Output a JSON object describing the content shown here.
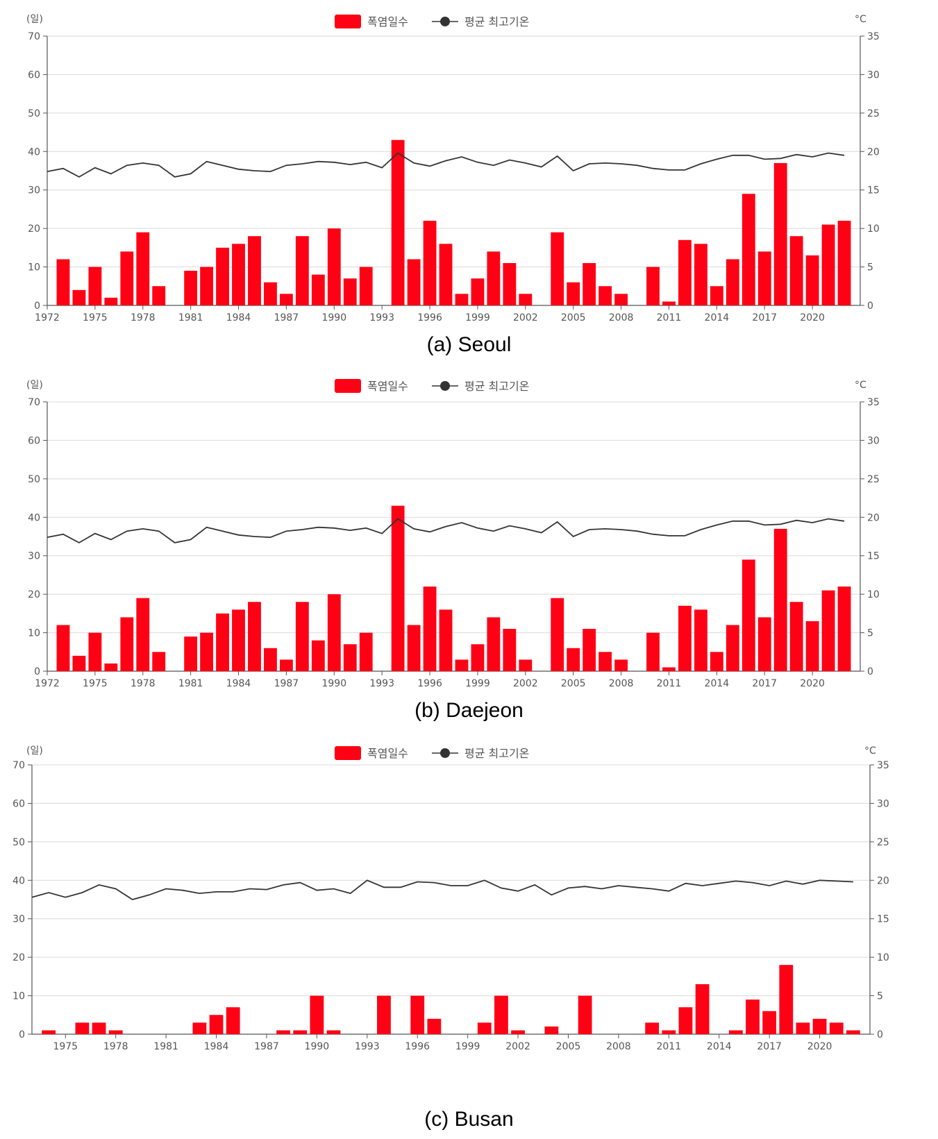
{
  "legend": {
    "bar_label": "폭염일수",
    "line_label": "평균 최고기온",
    "bar_color": "#ff0015",
    "line_color": "#333333"
  },
  "units": {
    "left": "(일)",
    "right": "°C"
  },
  "chart_data": [
    {
      "type": "bar",
      "caption": "(a) Seoul",
      "x_ticks": [
        "1972",
        "1975",
        "1978",
        "1981",
        "1984",
        "1987",
        "1990",
        "1993",
        "1996",
        "1999",
        "2002",
        "2005",
        "2008",
        "2011",
        "2014",
        "2017",
        "2020"
      ],
      "left_ticks": [
        "0",
        "10",
        "20",
        "30",
        "40",
        "50",
        "60",
        "70"
      ],
      "right_ticks": [
        "0",
        "5",
        "10",
        "15",
        "20",
        "25",
        "30",
        "35"
      ],
      "ylim_left": [
        0,
        70
      ],
      "ylim_right": [
        0,
        35
      ],
      "x_start": 1972,
      "x_end": 2023,
      "series": [
        {
          "name": "폭염일수",
          "axis": "left",
          "x": [
            1973,
            1974,
            1975,
            1976,
            1977,
            1978,
            1979,
            1981,
            1982,
            1983,
            1984,
            1985,
            1986,
            1987,
            1988,
            1989,
            1990,
            1991,
            1992,
            1994,
            1995,
            1996,
            1997,
            1998,
            1999,
            2000,
            2001,
            2002,
            2004,
            2005,
            2006,
            2007,
            2008,
            2010,
            2011,
            2012,
            2013,
            2014,
            2015,
            2016,
            2017,
            2018,
            2019,
            2020,
            2021,
            2022
          ],
          "values": [
            12,
            4,
            10,
            2,
            14,
            19,
            5,
            9,
            10,
            15,
            16,
            18,
            6,
            3,
            18,
            8,
            20,
            7,
            10,
            43,
            12,
            22,
            16,
            3,
            7,
            14,
            11,
            3,
            19,
            6,
            11,
            5,
            3,
            10,
            1,
            17,
            16,
            5,
            12,
            29,
            14,
            37,
            18,
            13,
            21,
            22
          ]
        },
        {
          "name": "평균 최고기온",
          "axis": "right",
          "x": [
            1972,
            1973,
            1974,
            1975,
            1976,
            1977,
            1978,
            1979,
            1980,
            1981,
            1982,
            1983,
            1984,
            1985,
            1986,
            1987,
            1988,
            1989,
            1990,
            1991,
            1992,
            1993,
            1994,
            1995,
            1996,
            1997,
            1998,
            1999,
            2000,
            2001,
            2002,
            2003,
            2004,
            2005,
            2006,
            2007,
            2008,
            2009,
            2010,
            2011,
            2012,
            2013,
            2014,
            2015,
            2016,
            2017,
            2018,
            2019,
            2020,
            2021,
            2022
          ],
          "values": [
            17.4,
            17.8,
            16.7,
            17.9,
            17.1,
            18.2,
            18.5,
            18.2,
            16.7,
            17.1,
            18.7,
            18.2,
            17.7,
            17.5,
            17.4,
            18.2,
            18.4,
            18.7,
            18.6,
            18.3,
            18.6,
            17.9,
            19.8,
            18.5,
            18.1,
            18.8,
            19.3,
            18.6,
            18.2,
            18.9,
            18.5,
            18.0,
            19.4,
            17.5,
            18.4,
            18.5,
            18.4,
            18.2,
            17.8,
            17.6,
            17.6,
            18.4,
            19.0,
            19.5,
            19.5,
            19.0,
            19.1,
            19.6,
            19.3,
            19.8,
            19.5
          ]
        }
      ]
    },
    {
      "type": "bar",
      "caption": "(b) Daejeon",
      "x_ticks": [
        "1972",
        "1975",
        "1978",
        "1981",
        "1984",
        "1987",
        "1990",
        "1993",
        "1996",
        "1999",
        "2002",
        "2005",
        "2008",
        "2011",
        "2014",
        "2017",
        "2020"
      ],
      "left_ticks": [
        "0",
        "10",
        "20",
        "30",
        "40",
        "50",
        "60",
        "70"
      ],
      "right_ticks": [
        "0",
        "5",
        "10",
        "15",
        "20",
        "25",
        "30",
        "35"
      ],
      "ylim_left": [
        0,
        70
      ],
      "ylim_right": [
        0,
        35
      ],
      "x_start": 1972,
      "x_end": 2023,
      "series": [
        {
          "name": "폭염일수",
          "axis": "left",
          "x": [
            1973,
            1974,
            1975,
            1976,
            1977,
            1978,
            1979,
            1981,
            1982,
            1983,
            1984,
            1985,
            1986,
            1987,
            1988,
            1989,
            1990,
            1991,
            1992,
            1994,
            1995,
            1996,
            1997,
            1998,
            1999,
            2000,
            2001,
            2002,
            2004,
            2005,
            2006,
            2007,
            2008,
            2010,
            2011,
            2012,
            2013,
            2014,
            2015,
            2016,
            2017,
            2018,
            2019,
            2020,
            2021,
            2022
          ],
          "values": [
            12,
            4,
            10,
            2,
            14,
            19,
            5,
            9,
            10,
            15,
            16,
            18,
            6,
            3,
            18,
            8,
            20,
            7,
            10,
            43,
            12,
            22,
            16,
            3,
            7,
            14,
            11,
            3,
            19,
            6,
            11,
            5,
            3,
            10,
            1,
            17,
            16,
            5,
            12,
            29,
            14,
            37,
            18,
            13,
            21,
            22
          ]
        },
        {
          "name": "평균 최고기온",
          "axis": "right",
          "x": [
            1972,
            1973,
            1974,
            1975,
            1976,
            1977,
            1978,
            1979,
            1980,
            1981,
            1982,
            1983,
            1984,
            1985,
            1986,
            1987,
            1988,
            1989,
            1990,
            1991,
            1992,
            1993,
            1994,
            1995,
            1996,
            1997,
            1998,
            1999,
            2000,
            2001,
            2002,
            2003,
            2004,
            2005,
            2006,
            2007,
            2008,
            2009,
            2010,
            2011,
            2012,
            2013,
            2014,
            2015,
            2016,
            2017,
            2018,
            2019,
            2020,
            2021,
            2022
          ],
          "values": [
            17.4,
            17.8,
            16.7,
            17.9,
            17.1,
            18.2,
            18.5,
            18.2,
            16.7,
            17.1,
            18.7,
            18.2,
            17.7,
            17.5,
            17.4,
            18.2,
            18.4,
            18.7,
            18.6,
            18.3,
            18.6,
            17.9,
            19.8,
            18.5,
            18.1,
            18.8,
            19.3,
            18.6,
            18.2,
            18.9,
            18.5,
            18.0,
            19.4,
            17.5,
            18.4,
            18.5,
            18.4,
            18.2,
            17.8,
            17.6,
            17.6,
            18.4,
            19.0,
            19.5,
            19.5,
            19.0,
            19.1,
            19.6,
            19.3,
            19.8,
            19.5
          ]
        }
      ]
    },
    {
      "type": "bar",
      "caption": "(c) Busan",
      "x_ticks": [
        "1975",
        "1978",
        "1981",
        "1984",
        "1987",
        "1990",
        "1993",
        "1996",
        "1999",
        "2002",
        "2005",
        "2008",
        "2011",
        "2014",
        "2017",
        "2020"
      ],
      "left_ticks": [
        "0",
        "10",
        "20",
        "30",
        "40",
        "50",
        "60",
        "70"
      ],
      "right_ticks": [
        "0",
        "5",
        "10",
        "15",
        "20",
        "25",
        "30",
        "35"
      ],
      "ylim_left": [
        0,
        70
      ],
      "ylim_right": [
        0,
        35
      ],
      "x_start": 1973,
      "x_end": 2023,
      "series": [
        {
          "name": "폭염일수",
          "axis": "left",
          "x": [
            1974,
            1976,
            1977,
            1978,
            1983,
            1984,
            1985,
            1988,
            1989,
            1990,
            1991,
            1994,
            1996,
            1997,
            2000,
            2001,
            2002,
            2004,
            2006,
            2010,
            2011,
            2012,
            2013,
            2015,
            2016,
            2017,
            2018,
            2019,
            2020,
            2021,
            2022
          ],
          "values": [
            1,
            3,
            3,
            1,
            3,
            5,
            7,
            1,
            1,
            10,
            1,
            10,
            10,
            4,
            3,
            10,
            1,
            2,
            10,
            3,
            1,
            7,
            13,
            1,
            9,
            6,
            18,
            3,
            4,
            3,
            1
          ]
        },
        {
          "name": "평균 최고기온",
          "axis": "right",
          "x": [
            1973,
            1974,
            1975,
            1976,
            1977,
            1978,
            1979,
            1980,
            1981,
            1982,
            1983,
            1984,
            1985,
            1986,
            1987,
            1988,
            1989,
            1990,
            1991,
            1992,
            1993,
            1994,
            1995,
            1996,
            1997,
            1998,
            1999,
            2000,
            2001,
            2002,
            2003,
            2004,
            2005,
            2006,
            2007,
            2008,
            2009,
            2010,
            2011,
            2012,
            2013,
            2014,
            2015,
            2016,
            2017,
            2018,
            2019,
            2020,
            2021,
            2022
          ],
          "values": [
            17.8,
            18.4,
            17.8,
            18.4,
            19.4,
            18.9,
            17.5,
            18.1,
            18.9,
            18.7,
            18.3,
            18.5,
            18.5,
            18.9,
            18.8,
            19.4,
            19.7,
            18.7,
            18.9,
            18.3,
            20.0,
            19.1,
            19.1,
            19.8,
            19.7,
            19.3,
            19.3,
            20.0,
            19.0,
            18.6,
            19.4,
            18.1,
            19.0,
            19.2,
            18.9,
            19.3,
            19.1,
            18.9,
            18.6,
            19.6,
            19.3,
            19.6,
            19.9,
            19.7,
            19.3,
            19.9,
            19.5,
            20.0,
            19.9,
            19.8
          ]
        }
      ]
    }
  ]
}
